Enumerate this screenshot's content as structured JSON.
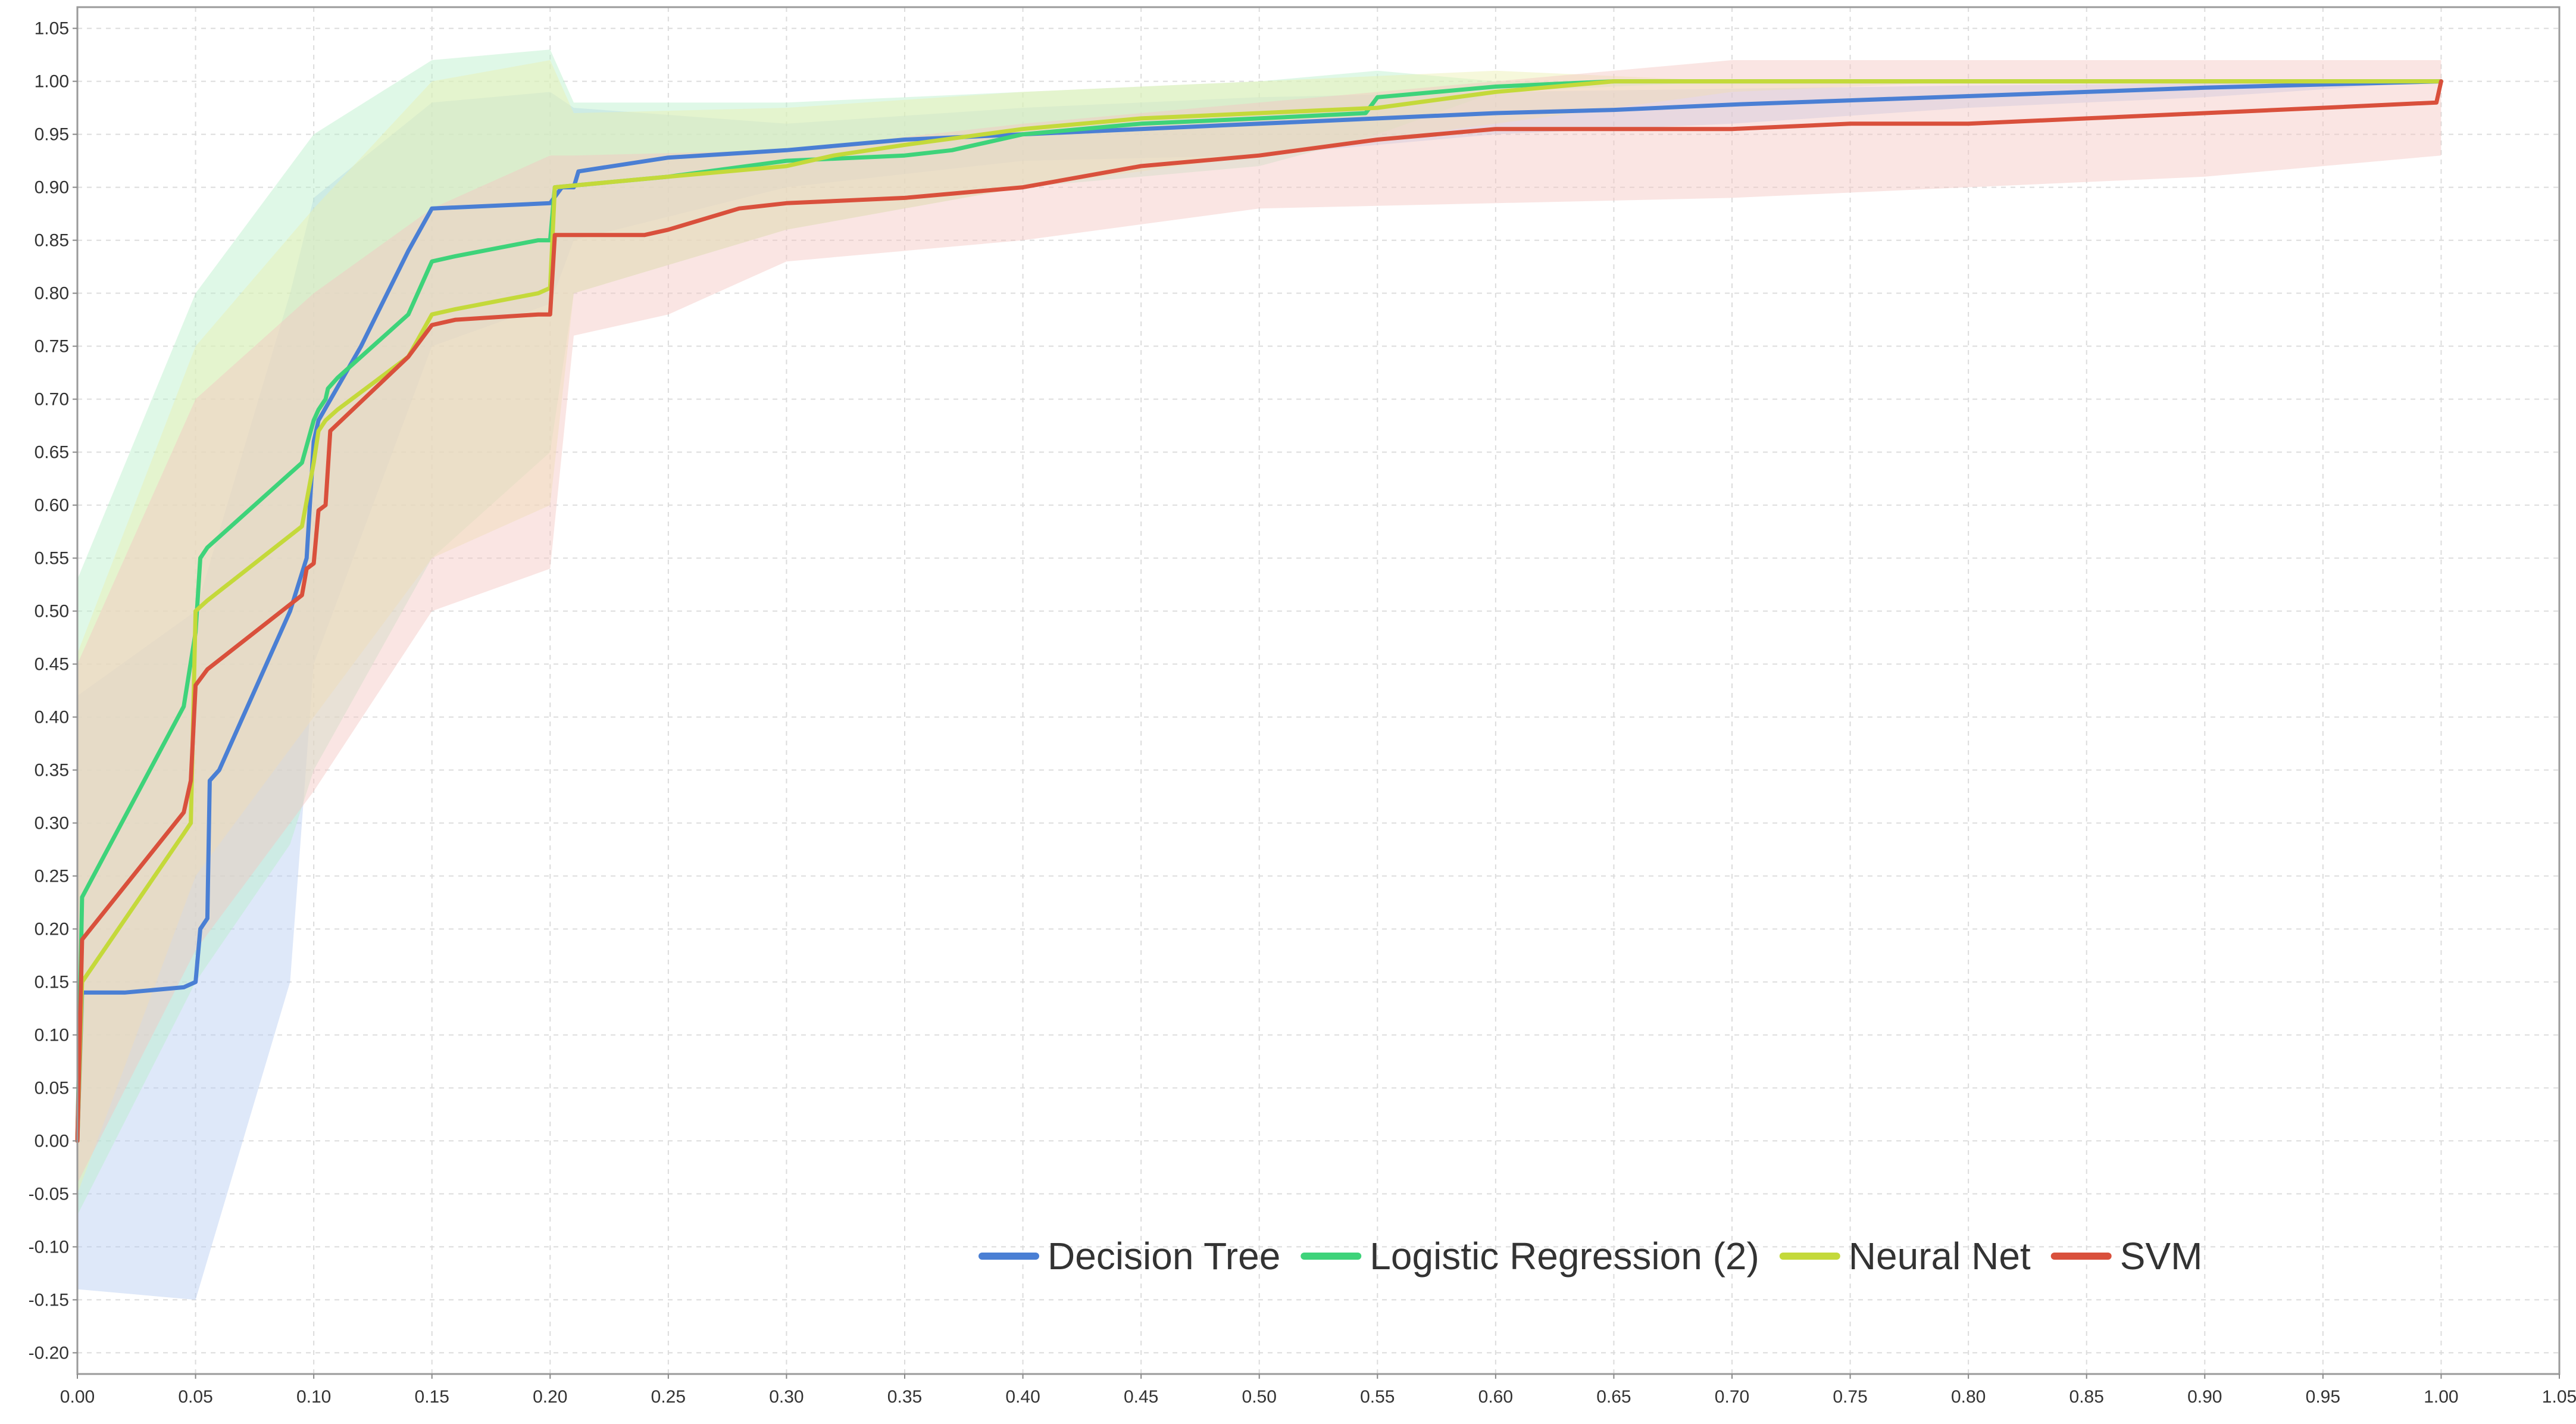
{
  "chart_data": {
    "type": "line",
    "title": "",
    "xlabel": "",
    "ylabel": "",
    "xlim": [
      0,
      1.05
    ],
    "ylim": [
      -0.22,
      1.07
    ],
    "grid": true,
    "legend_position": "bottom-right",
    "x_ticks": [
      "0.00",
      "0.05",
      "0.10",
      "0.15",
      "0.20",
      "0.25",
      "0.30",
      "0.35",
      "0.40",
      "0.45",
      "0.50",
      "0.55",
      "0.60",
      "0.65",
      "0.70",
      "0.75",
      "0.80",
      "0.85",
      "0.90",
      "0.95",
      "1.00",
      "1.05"
    ],
    "y_ticks": [
      "-0.20",
      "-0.15",
      "-0.10",
      "-0.05",
      "0.00",
      "0.05",
      "0.10",
      "0.15",
      "0.20",
      "0.25",
      "0.30",
      "0.35",
      "0.40",
      "0.45",
      "0.50",
      "0.55",
      "0.60",
      "0.65",
      "0.70",
      "0.75",
      "0.80",
      "0.85",
      "0.90",
      "0.95",
      "1.00",
      "1.05"
    ],
    "series": [
      {
        "name": "Decision Tree",
        "color": "#4a7fd4",
        "band_color": "#b6cdf2",
        "points": [
          [
            0.0,
            0.0
          ],
          [
            0.002,
            0.14
          ],
          [
            0.02,
            0.14
          ],
          [
            0.045,
            0.145
          ],
          [
            0.05,
            0.15
          ],
          [
            0.052,
            0.2
          ],
          [
            0.055,
            0.21
          ],
          [
            0.056,
            0.34
          ],
          [
            0.06,
            0.35
          ],
          [
            0.09,
            0.5
          ],
          [
            0.097,
            0.55
          ],
          [
            0.1,
            0.66
          ],
          [
            0.102,
            0.68
          ],
          [
            0.12,
            0.75
          ],
          [
            0.14,
            0.84
          ],
          [
            0.15,
            0.88
          ],
          [
            0.2,
            0.885
          ],
          [
            0.205,
            0.9
          ],
          [
            0.21,
            0.9
          ],
          [
            0.212,
            0.915
          ],
          [
            0.25,
            0.928
          ],
          [
            0.3,
            0.935
          ],
          [
            0.35,
            0.945
          ],
          [
            0.4,
            0.95
          ],
          [
            0.45,
            0.955
          ],
          [
            0.5,
            0.96
          ],
          [
            0.55,
            0.965
          ],
          [
            0.6,
            0.97
          ],
          [
            0.65,
            0.973
          ],
          [
            0.7,
            0.978
          ],
          [
            0.75,
            0.982
          ],
          [
            0.8,
            0.986
          ],
          [
            0.85,
            0.99
          ],
          [
            0.9,
            0.994
          ],
          [
            0.95,
            0.997
          ],
          [
            1.0,
            1.0
          ]
        ],
        "upper": [
          [
            0.0,
            0.42
          ],
          [
            0.05,
            0.5
          ],
          [
            0.09,
            0.8
          ],
          [
            0.1,
            0.89
          ],
          [
            0.15,
            0.98
          ],
          [
            0.2,
            0.99
          ],
          [
            0.21,
            0.975
          ],
          [
            0.3,
            0.96
          ],
          [
            0.4,
            0.975
          ],
          [
            0.5,
            0.985
          ],
          [
            0.6,
            0.99
          ],
          [
            0.7,
            0.993
          ],
          [
            0.8,
            0.996
          ],
          [
            0.9,
            0.998
          ],
          [
            1.0,
            1.0
          ]
        ],
        "lower": [
          [
            0.0,
            -0.14
          ],
          [
            0.05,
            -0.15
          ],
          [
            0.07,
            0.0
          ],
          [
            0.09,
            0.15
          ],
          [
            0.1,
            0.45
          ],
          [
            0.15,
            0.75
          ],
          [
            0.2,
            0.79
          ],
          [
            0.21,
            0.85
          ],
          [
            0.3,
            0.9
          ],
          [
            0.4,
            0.925
          ],
          [
            0.5,
            0.93
          ],
          [
            0.6,
            0.95
          ],
          [
            0.7,
            0.96
          ],
          [
            0.8,
            0.975
          ],
          [
            0.9,
            0.985
          ],
          [
            1.0,
            1.0
          ]
        ]
      },
      {
        "name": "Logistic Regression (2)",
        "color": "#3ed37a",
        "band_color": "#b9efc9",
        "points": [
          [
            0.0,
            0.0
          ],
          [
            0.002,
            0.23
          ],
          [
            0.045,
            0.41
          ],
          [
            0.05,
            0.48
          ],
          [
            0.052,
            0.55
          ],
          [
            0.055,
            0.56
          ],
          [
            0.09,
            0.63
          ],
          [
            0.095,
            0.64
          ],
          [
            0.1,
            0.68
          ],
          [
            0.102,
            0.69
          ],
          [
            0.105,
            0.7
          ],
          [
            0.106,
            0.71
          ],
          [
            0.11,
            0.72
          ],
          [
            0.14,
            0.78
          ],
          [
            0.15,
            0.83
          ],
          [
            0.16,
            0.835
          ],
          [
            0.195,
            0.85
          ],
          [
            0.2,
            0.85
          ],
          [
            0.202,
            0.9
          ],
          [
            0.25,
            0.91
          ],
          [
            0.3,
            0.925
          ],
          [
            0.35,
            0.93
          ],
          [
            0.37,
            0.935
          ],
          [
            0.4,
            0.95
          ],
          [
            0.45,
            0.96
          ],
          [
            0.5,
            0.965
          ],
          [
            0.545,
            0.97
          ],
          [
            0.55,
            0.985
          ],
          [
            0.6,
            0.995
          ],
          [
            0.65,
            1.0
          ],
          [
            0.7,
            1.0
          ],
          [
            0.75,
            1.0
          ],
          [
            0.8,
            1.0
          ],
          [
            0.85,
            1.0
          ],
          [
            0.9,
            1.0
          ],
          [
            0.95,
            1.0
          ],
          [
            1.0,
            1.0
          ]
        ],
        "upper": [
          [
            0.0,
            0.53
          ],
          [
            0.05,
            0.8
          ],
          [
            0.1,
            0.95
          ],
          [
            0.15,
            1.02
          ],
          [
            0.2,
            1.03
          ],
          [
            0.21,
            0.98
          ],
          [
            0.3,
            0.98
          ],
          [
            0.4,
            0.99
          ],
          [
            0.5,
            1.0
          ],
          [
            0.55,
            1.01
          ],
          [
            0.6,
            1.0
          ],
          [
            0.7,
            1.0
          ],
          [
            0.8,
            1.0
          ],
          [
            0.9,
            1.0
          ],
          [
            1.0,
            1.0
          ]
        ],
        "lower": [
          [
            0.0,
            -0.07
          ],
          [
            0.05,
            0.15
          ],
          [
            0.09,
            0.28
          ],
          [
            0.1,
            0.35
          ],
          [
            0.15,
            0.55
          ],
          [
            0.2,
            0.65
          ],
          [
            0.21,
            0.8
          ],
          [
            0.3,
            0.86
          ],
          [
            0.4,
            0.9
          ],
          [
            0.5,
            0.92
          ],
          [
            0.55,
            0.95
          ],
          [
            0.6,
            0.99
          ],
          [
            0.7,
            1.0
          ],
          [
            0.8,
            1.0
          ],
          [
            0.9,
            1.0
          ],
          [
            1.0,
            1.0
          ]
        ]
      },
      {
        "name": "Neural Net",
        "color": "#c4d93a",
        "band_color": "#ecf0b0",
        "points": [
          [
            0.0,
            0.0
          ],
          [
            0.002,
            0.15
          ],
          [
            0.045,
            0.29
          ],
          [
            0.048,
            0.3
          ],
          [
            0.05,
            0.5
          ],
          [
            0.055,
            0.51
          ],
          [
            0.095,
            0.58
          ],
          [
            0.1,
            0.64
          ],
          [
            0.102,
            0.67
          ],
          [
            0.105,
            0.68
          ],
          [
            0.11,
            0.69
          ],
          [
            0.14,
            0.74
          ],
          [
            0.15,
            0.78
          ],
          [
            0.16,
            0.785
          ],
          [
            0.195,
            0.8
          ],
          [
            0.2,
            0.805
          ],
          [
            0.202,
            0.9
          ],
          [
            0.25,
            0.91
          ],
          [
            0.3,
            0.92
          ],
          [
            0.32,
            0.93
          ],
          [
            0.35,
            0.94
          ],
          [
            0.4,
            0.955
          ],
          [
            0.45,
            0.965
          ],
          [
            0.5,
            0.97
          ],
          [
            0.55,
            0.975
          ],
          [
            0.6,
            0.99
          ],
          [
            0.65,
            1.0
          ],
          [
            0.7,
            1.0
          ],
          [
            0.75,
            1.0
          ],
          [
            0.8,
            1.0
          ],
          [
            0.85,
            1.0
          ],
          [
            0.9,
            1.0
          ],
          [
            0.95,
            1.0
          ],
          [
            1.0,
            1.0
          ]
        ],
        "upper": [
          [
            0.0,
            0.46
          ],
          [
            0.05,
            0.75
          ],
          [
            0.1,
            0.88
          ],
          [
            0.15,
            1.0
          ],
          [
            0.2,
            1.02
          ],
          [
            0.21,
            0.97
          ],
          [
            0.3,
            0.975
          ],
          [
            0.4,
            0.99
          ],
          [
            0.5,
            1.0
          ],
          [
            0.6,
            1.01
          ],
          [
            0.7,
            1.0
          ],
          [
            0.8,
            1.0
          ],
          [
            0.9,
            1.0
          ],
          [
            1.0,
            1.0
          ]
        ],
        "lower": [
          [
            0.0,
            -0.05
          ],
          [
            0.05,
            0.25
          ],
          [
            0.1,
            0.4
          ],
          [
            0.15,
            0.55
          ],
          [
            0.2,
            0.6
          ],
          [
            0.21,
            0.8
          ],
          [
            0.3,
            0.86
          ],
          [
            0.4,
            0.9
          ],
          [
            0.5,
            0.93
          ],
          [
            0.6,
            0.96
          ],
          [
            0.7,
            0.99
          ],
          [
            0.8,
            1.0
          ],
          [
            0.9,
            1.0
          ],
          [
            1.0,
            1.0
          ]
        ]
      },
      {
        "name": "SVM",
        "color": "#d9503c",
        "band_color": "#f5c6c2",
        "points": [
          [
            0.0,
            0.0
          ],
          [
            0.002,
            0.19
          ],
          [
            0.045,
            0.31
          ],
          [
            0.048,
            0.34
          ],
          [
            0.05,
            0.43
          ],
          [
            0.055,
            0.445
          ],
          [
            0.095,
            0.515
          ],
          [
            0.097,
            0.54
          ],
          [
            0.1,
            0.545
          ],
          [
            0.102,
            0.595
          ],
          [
            0.105,
            0.6
          ],
          [
            0.107,
            0.67
          ],
          [
            0.14,
            0.74
          ],
          [
            0.15,
            0.77
          ],
          [
            0.16,
            0.775
          ],
          [
            0.195,
            0.78
          ],
          [
            0.2,
            0.78
          ],
          [
            0.202,
            0.855
          ],
          [
            0.24,
            0.855
          ],
          [
            0.25,
            0.86
          ],
          [
            0.28,
            0.88
          ],
          [
            0.3,
            0.885
          ],
          [
            0.35,
            0.89
          ],
          [
            0.4,
            0.9
          ],
          [
            0.45,
            0.92
          ],
          [
            0.5,
            0.93
          ],
          [
            0.55,
            0.945
          ],
          [
            0.6,
            0.955
          ],
          [
            0.65,
            0.955
          ],
          [
            0.7,
            0.955
          ],
          [
            0.75,
            0.96
          ],
          [
            0.8,
            0.96
          ],
          [
            0.85,
            0.965
          ],
          [
            0.9,
            0.97
          ],
          [
            0.95,
            0.975
          ],
          [
            0.998,
            0.98
          ],
          [
            1.0,
            1.0
          ]
        ],
        "upper": [
          [
            0.0,
            0.45
          ],
          [
            0.05,
            0.7
          ],
          [
            0.1,
            0.8
          ],
          [
            0.15,
            0.88
          ],
          [
            0.2,
            0.93
          ],
          [
            0.21,
            0.93
          ],
          [
            0.3,
            0.935
          ],
          [
            0.4,
            0.96
          ],
          [
            0.5,
            0.98
          ],
          [
            0.6,
            1.0
          ],
          [
            0.7,
            1.02
          ],
          [
            0.8,
            1.02
          ],
          [
            0.9,
            1.02
          ],
          [
            1.0,
            1.02
          ]
        ],
        "lower": [
          [
            0.0,
            -0.04
          ],
          [
            0.05,
            0.18
          ],
          [
            0.1,
            0.33
          ],
          [
            0.15,
            0.5
          ],
          [
            0.2,
            0.54
          ],
          [
            0.21,
            0.76
          ],
          [
            0.25,
            0.78
          ],
          [
            0.3,
            0.83
          ],
          [
            0.4,
            0.85
          ],
          [
            0.5,
            0.88
          ],
          [
            0.6,
            0.885
          ],
          [
            0.7,
            0.89
          ],
          [
            0.8,
            0.9
          ],
          [
            0.9,
            0.91
          ],
          [
            1.0,
            0.93
          ]
        ]
      }
    ]
  }
}
